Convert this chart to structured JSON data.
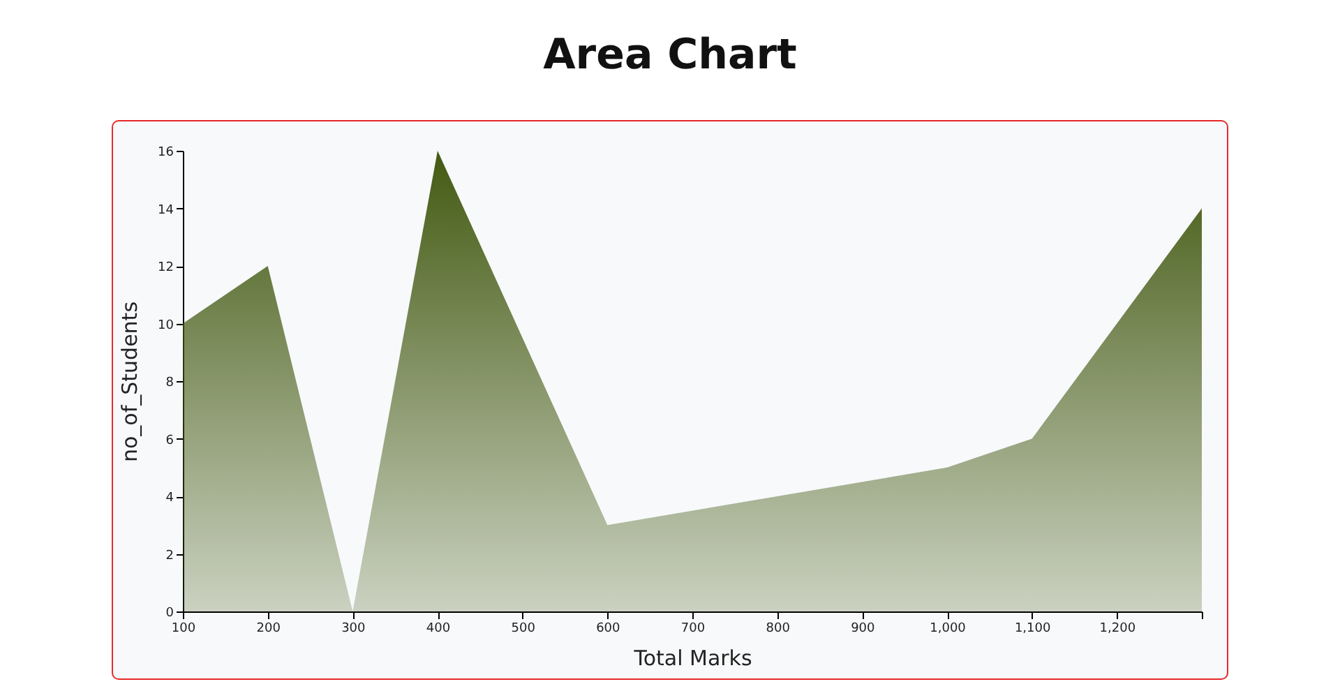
{
  "chart_data": {
    "type": "area",
    "title": "Area Chart",
    "xlabel": "Total Marks",
    "ylabel": "no_of_Students",
    "x": [
      100,
      200,
      300,
      400,
      600,
      1000,
      1100,
      1300
    ],
    "series": [
      {
        "color": "#435a12",
        "values": [
          10,
          12,
          0,
          16,
          3,
          5,
          6,
          14
        ]
      }
    ],
    "xlim": [
      100,
      1300
    ],
    "xticks": [
      100,
      200,
      300,
      400,
      500,
      600,
      700,
      800,
      900,
      {
        "value": 1000,
        "label": "1,000"
      },
      {
        "value": 1100,
        "label": "1,100"
      },
      {
        "value": 1200,
        "label": "1,200"
      },
      {
        "value": 1300,
        "label": null
      }
    ],
    "ylim": [
      0,
      16
    ],
    "yticks": [
      0,
      2,
      4,
      6,
      8,
      10,
      12,
      14,
      16
    ],
    "grid": false
  }
}
